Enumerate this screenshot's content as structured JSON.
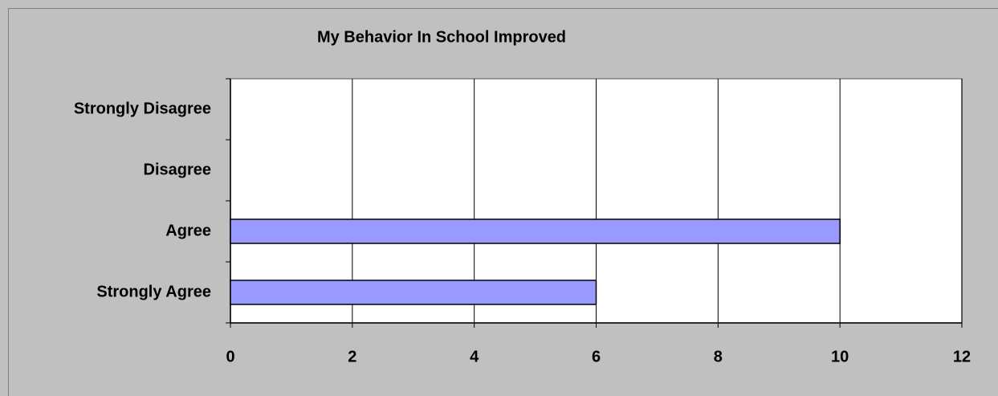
{
  "chart_data": {
    "type": "bar",
    "orientation": "horizontal",
    "title": "My Behavior In School Improved",
    "categories": [
      "Strongly Disagree",
      "Disagree",
      "Agree",
      "Strongly Agree"
    ],
    "values": [
      0,
      0,
      10,
      6
    ],
    "color": "#9999ff",
    "xlim": [
      0,
      12
    ],
    "xticks": [
      0,
      2,
      4,
      6,
      8,
      10,
      12
    ],
    "grid": true
  }
}
